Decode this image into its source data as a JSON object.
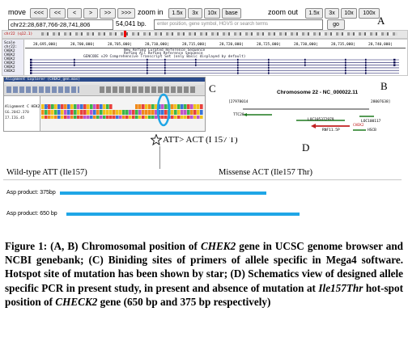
{
  "panel_a": {
    "letter": "A",
    "nav": {
      "move_label": "move",
      "move_buttons": [
        "<<<",
        "<<",
        "<",
        ">",
        ">>",
        ">>>"
      ],
      "zoom_in_label": "zoom in",
      "zoom_in_buttons": [
        "1.5x",
        "3x",
        "10x",
        "base"
      ],
      "zoom_out_label": "zoom out",
      "zoom_out_buttons": [
        "1.5x",
        "3x",
        "10x",
        "100x"
      ]
    },
    "position_value": "chr22:28,687,766-28,741,806",
    "span_text": "54,041 bp.",
    "search_placeholder": "enter position, gene symbol, HGVS or search terms",
    "go_label": "go",
    "chrom_label": "chr22 (q12.1)",
    "track_labels": [
      "Scale",
      "chr22:",
      "CHEK2",
      "CHEK2",
      "CHEK2",
      "CHEK2",
      "CHEK2",
      "CHEK2"
    ],
    "scale_ticks": [
      "28,695,000|",
      "28,700,000|",
      "28,705,000|",
      "28,710,000|",
      "28,715,000|",
      "28,720,000|",
      "28,725,000|",
      "28,730,000|",
      "28,735,000|",
      "28,740,000|"
    ],
    "track_titles": [
      "New RefSeq Curated Reference Sequence",
      "RefSeq All RefSeq Reference Sequence",
      "GENCODE v29 Comprehensive Transcript Set (only Basic displayed by default)"
    ]
  },
  "panel_b": {
    "letter": "B",
    "title": "Chromosome 22 - NC_000022.11",
    "left_coord": "[27978014",
    "right_coord": "28007638]",
    "genes_left": [
      "TTC28"
    ],
    "genes_mid": [
      "LOC105372979",
      "CHEK2",
      "RNF11.5P"
    ],
    "genes_right": [
      "LOC100117",
      "HSCB"
    ]
  },
  "panel_c": {
    "letter": "C",
    "window_title": "Alignment Explorer (CHEK2_gen.mas)",
    "row_labels": [
      "Alignment C HEK2 (I8 bp)",
      "GG.2042.370",
      "I7.IIG.45"
    ],
    "annotation": "ATT> ACT (I 157 T)"
  },
  "panel_d": {
    "letter": "D",
    "wild_label": "Wild-type ATT (Ile157)",
    "mutant_label": "Missense ACT (Ile157 Thr)",
    "product_375": "Asp product: 375bp",
    "product_650": "Asp product: 650 bp",
    "bar_color": "#1fa6e6"
  },
  "caption": {
    "part1": "Figure 1: (A, B) Chromosomal position of ",
    "gene1": "CHEK2",
    "part2": " gene in UCSC genome browser and NCBI genebank; (C) Biniding sites of primers of allele specific in Mega4 software. Hotspot site of mutation has been shown by star; (D) Schematics view of designed allele specific PCR in present study, in present and absence of mutation at ",
    "mutation": "Ile157Thr",
    "part3": " hot-spot position of ",
    "gene2": "CHECK2",
    "part4": " gene (650 bp and 375 bp respectively)"
  }
}
